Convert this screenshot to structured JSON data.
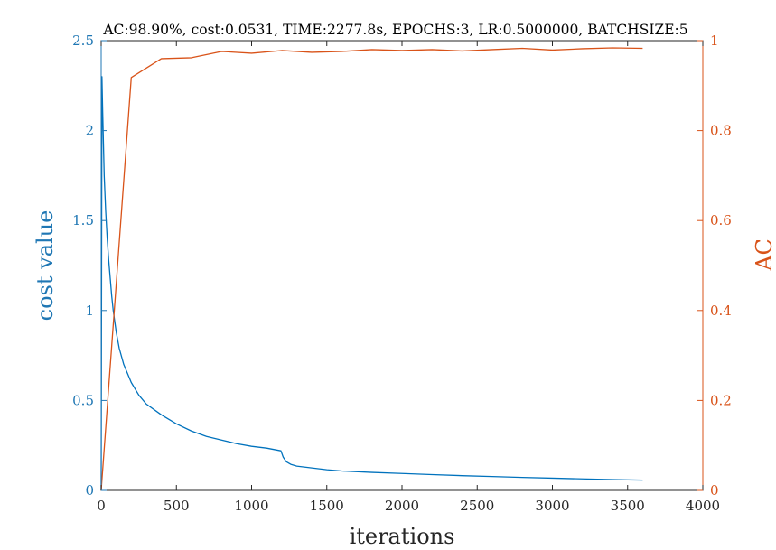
{
  "chart_data": {
    "type": "line",
    "title": "AC:98.90%, cost:0.0531, TIME:2277.8s, EPOCHS:3, LR:0.5000000, BATCHSIZE:5",
    "xlabel": "iterations",
    "ylabel_left": "cost value",
    "ylabel_right": "AC",
    "xlim": [
      0,
      4000
    ],
    "ylim_left": [
      0,
      2.5
    ],
    "ylim_right": [
      0,
      1
    ],
    "x_ticks": [
      "0",
      "500",
      "1000",
      "1500",
      "2000",
      "2500",
      "3000",
      "3500",
      "4000"
    ],
    "y_left_ticks": [
      "0",
      "0.5",
      "1",
      "1.5",
      "2",
      "2.5"
    ],
    "y_right_ticks": [
      "0",
      "0.2",
      "0.4",
      "0.6",
      "0.8",
      "1"
    ],
    "grid": false,
    "colors": {
      "cost": "#0072BD",
      "accuracy": "#D95319",
      "axis": "#262626"
    },
    "series": [
      {
        "axis": "left",
        "x": [
          0,
          5,
          10,
          20,
          30,
          40,
          50,
          60,
          70,
          80,
          100,
          120,
          150,
          200,
          250,
          300,
          400,
          500,
          600,
          700,
          800,
          900,
          1000,
          1100,
          1195,
          1210,
          1230,
          1260,
          1300,
          1400,
          1500,
          1600,
          1800,
          2000,
          2200,
          2400,
          2600,
          2800,
          3000,
          3200,
          3400,
          3600
        ],
        "y": [
          0.0,
          2.3,
          2.1,
          1.75,
          1.55,
          1.4,
          1.28,
          1.18,
          1.08,
          1.0,
          0.88,
          0.79,
          0.7,
          0.6,
          0.53,
          0.48,
          0.42,
          0.37,
          0.33,
          0.3,
          0.28,
          0.26,
          0.245,
          0.235,
          0.22,
          0.185,
          0.16,
          0.145,
          0.135,
          0.125,
          0.115,
          0.108,
          0.1,
          0.094,
          0.088,
          0.082,
          0.077,
          0.072,
          0.068,
          0.064,
          0.06,
          0.057
        ]
      },
      {
        "axis": "right",
        "x": [
          0,
          200,
          400,
          600,
          800,
          1000,
          1200,
          1400,
          1600,
          1800,
          2000,
          2200,
          2400,
          2600,
          2800,
          3000,
          3200,
          3400,
          3600
        ],
        "y": [
          0.0,
          0.918,
          0.96,
          0.962,
          0.976,
          0.972,
          0.978,
          0.974,
          0.976,
          0.98,
          0.978,
          0.98,
          0.977,
          0.98,
          0.983,
          0.979,
          0.982,
          0.984,
          0.983
        ]
      }
    ]
  }
}
